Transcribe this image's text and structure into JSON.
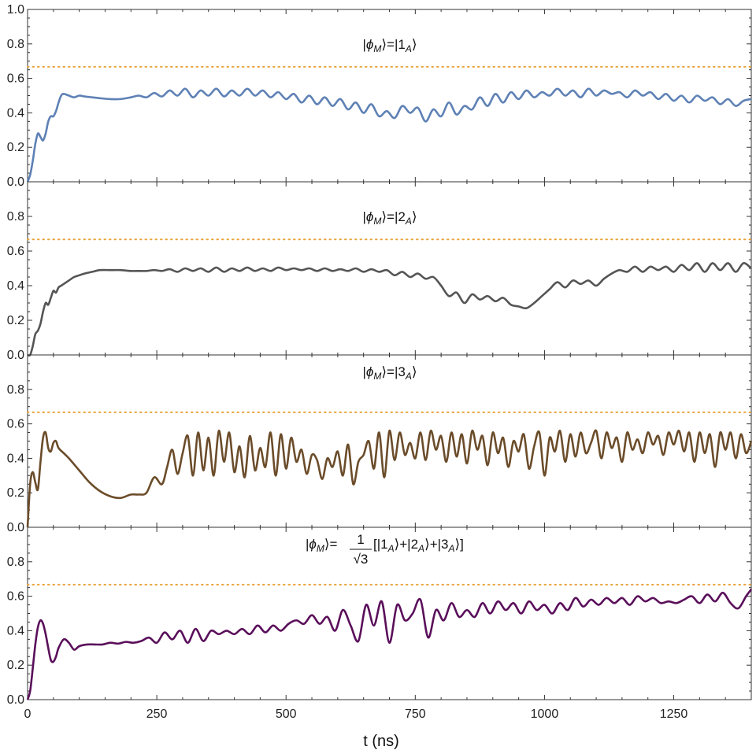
{
  "chart_data": [
    {
      "type": "line",
      "annotation": {
        "prefix": "|",
        "symbol": "ϕ",
        "symbol_sub": "M",
        "mid": "⟩=|1",
        "ket_sub": "A",
        "suffix": "⟩"
      },
      "ylim": [
        0,
        1
      ],
      "yticks": [
        "0.0",
        "0.2",
        "0.4",
        "0.6",
        "0.8",
        "1.0"
      ],
      "reference_line": {
        "y": 0.667,
        "style": "dotted",
        "color": "#E8A33B"
      },
      "series": [
        {
          "color": "#5E81B5",
          "x": [
            0,
            5,
            10,
            15,
            20,
            25,
            30,
            35,
            40,
            45,
            50,
            55,
            60,
            65,
            70,
            80,
            90,
            100,
            110,
            125,
            140,
            160,
            180,
            200,
            215,
            230,
            245,
            260,
            275,
            290,
            305,
            320,
            335,
            350,
            365,
            380,
            395,
            410,
            425,
            440,
            455,
            470,
            485,
            500,
            515,
            530,
            545,
            560,
            575,
            590,
            605,
            620,
            635,
            650,
            665,
            680,
            695,
            710,
            725,
            740,
            755,
            770,
            785,
            800,
            815,
            830,
            845,
            860,
            875,
            890,
            905,
            920,
            935,
            950,
            965,
            980,
            995,
            1010,
            1025,
            1040,
            1055,
            1070,
            1085,
            1100,
            1115,
            1130,
            1145,
            1160,
            1175,
            1190,
            1205,
            1220,
            1235,
            1250,
            1265,
            1280,
            1295,
            1310,
            1325,
            1340,
            1355,
            1370,
            1385,
            1400
          ],
          "y": [
            0.0,
            0.04,
            0.12,
            0.22,
            0.28,
            0.26,
            0.24,
            0.28,
            0.35,
            0.38,
            0.38,
            0.41,
            0.46,
            0.5,
            0.51,
            0.5,
            0.49,
            0.5,
            0.495,
            0.49,
            0.485,
            0.48,
            0.48,
            0.49,
            0.5,
            0.49,
            0.515,
            0.495,
            0.53,
            0.5,
            0.54,
            0.49,
            0.53,
            0.5,
            0.54,
            0.495,
            0.53,
            0.5,
            0.54,
            0.5,
            0.53,
            0.49,
            0.52,
            0.48,
            0.51,
            0.46,
            0.5,
            0.45,
            0.49,
            0.44,
            0.48,
            0.42,
            0.46,
            0.4,
            0.45,
            0.38,
            0.41,
            0.37,
            0.44,
            0.4,
            0.43,
            0.35,
            0.42,
            0.38,
            0.46,
            0.39,
            0.44,
            0.42,
            0.49,
            0.44,
            0.51,
            0.46,
            0.52,
            0.48,
            0.53,
            0.49,
            0.52,
            0.5,
            0.54,
            0.5,
            0.53,
            0.49,
            0.54,
            0.5,
            0.53,
            0.51,
            0.52,
            0.49,
            0.53,
            0.5,
            0.52,
            0.48,
            0.51,
            0.47,
            0.5,
            0.46,
            0.5,
            0.47,
            0.49,
            0.45,
            0.48,
            0.44,
            0.47,
            0.48
          ]
        }
      ]
    },
    {
      "type": "line",
      "annotation": {
        "prefix": "|",
        "symbol": "ϕ",
        "symbol_sub": "M",
        "mid": "⟩=|2",
        "ket_sub": "A",
        "suffix": "⟩"
      },
      "ylim": [
        0,
        1
      ],
      "yticks": [
        "0.0",
        "0.2",
        "0.4",
        "0.6",
        "0.8"
      ],
      "reference_line": {
        "y": 0.667,
        "style": "dotted",
        "color": "#E8A33B"
      },
      "series": [
        {
          "color": "#555555",
          "x": [
            0,
            5,
            10,
            15,
            20,
            25,
            30,
            35,
            40,
            45,
            50,
            55,
            60,
            65,
            70,
            80,
            90,
            100,
            110,
            125,
            140,
            160,
            180,
            200,
            215,
            230,
            245,
            260,
            275,
            290,
            305,
            320,
            335,
            350,
            365,
            380,
            395,
            410,
            425,
            440,
            455,
            470,
            485,
            500,
            515,
            530,
            545,
            560,
            575,
            590,
            605,
            620,
            635,
            650,
            665,
            680,
            695,
            710,
            725,
            740,
            755,
            770,
            785,
            800,
            815,
            830,
            845,
            860,
            875,
            890,
            905,
            920,
            935,
            950,
            965,
            980,
            995,
            1010,
            1025,
            1040,
            1055,
            1070,
            1085,
            1100,
            1115,
            1130,
            1145,
            1160,
            1175,
            1190,
            1205,
            1220,
            1235,
            1250,
            1265,
            1280,
            1295,
            1310,
            1325,
            1340,
            1355,
            1370,
            1385,
            1400
          ],
          "y": [
            0.0,
            0.0,
            0.05,
            0.12,
            0.14,
            0.18,
            0.25,
            0.3,
            0.29,
            0.33,
            0.37,
            0.36,
            0.39,
            0.4,
            0.41,
            0.43,
            0.45,
            0.46,
            0.47,
            0.48,
            0.49,
            0.49,
            0.49,
            0.485,
            0.485,
            0.485,
            0.49,
            0.485,
            0.495,
            0.48,
            0.5,
            0.485,
            0.5,
            0.48,
            0.505,
            0.48,
            0.5,
            0.485,
            0.505,
            0.485,
            0.5,
            0.485,
            0.505,
            0.49,
            0.5,
            0.49,
            0.5,
            0.485,
            0.5,
            0.485,
            0.495,
            0.485,
            0.5,
            0.48,
            0.495,
            0.48,
            0.49,
            0.46,
            0.48,
            0.45,
            0.47,
            0.44,
            0.45,
            0.4,
            0.34,
            0.36,
            0.3,
            0.35,
            0.32,
            0.34,
            0.31,
            0.33,
            0.29,
            0.28,
            0.27,
            0.3,
            0.34,
            0.38,
            0.42,
            0.39,
            0.43,
            0.41,
            0.43,
            0.4,
            0.44,
            0.47,
            0.49,
            0.48,
            0.51,
            0.48,
            0.51,
            0.49,
            0.51,
            0.48,
            0.52,
            0.49,
            0.53,
            0.48,
            0.53,
            0.49,
            0.53,
            0.48,
            0.53,
            0.5
          ]
        }
      ]
    },
    {
      "type": "line",
      "annotation": {
        "prefix": "|",
        "symbol": "ϕ",
        "symbol_sub": "M",
        "mid": "⟩=|3",
        "ket_sub": "A",
        "suffix": "⟩"
      },
      "ylim": [
        0,
        1
      ],
      "yticks": [
        "0.0",
        "0.2",
        "0.4",
        "0.6",
        "0.8"
      ],
      "reference_line": {
        "y": 0.667,
        "style": "dotted",
        "color": "#E8A33B"
      },
      "series": [
        {
          "color": "#6B4C2A",
          "x": [
            0,
            5,
            10,
            15,
            20,
            25,
            30,
            35,
            40,
            45,
            50,
            55,
            60,
            70,
            80,
            100,
            120,
            140,
            160,
            180,
            200,
            215,
            230,
            245,
            260,
            270,
            280,
            290,
            300,
            310,
            320,
            330,
            340,
            350,
            360,
            370,
            380,
            390,
            400,
            410,
            420,
            430,
            440,
            450,
            460,
            470,
            480,
            490,
            500,
            510,
            520,
            530,
            540,
            550,
            560,
            570,
            580,
            590,
            600,
            610,
            620,
            630,
            640,
            650,
            660,
            670,
            680,
            690,
            700,
            710,
            720,
            730,
            740,
            750,
            760,
            770,
            780,
            790,
            800,
            810,
            820,
            830,
            840,
            850,
            860,
            870,
            880,
            890,
            900,
            910,
            920,
            930,
            940,
            950,
            960,
            970,
            980,
            990,
            1000,
            1010,
            1020,
            1030,
            1040,
            1050,
            1060,
            1070,
            1080,
            1090,
            1100,
            1110,
            1120,
            1130,
            1140,
            1150,
            1160,
            1170,
            1180,
            1190,
            1200,
            1210,
            1220,
            1230,
            1240,
            1250,
            1260,
            1270,
            1280,
            1290,
            1300,
            1310,
            1320,
            1330,
            1340,
            1350,
            1360,
            1370,
            1380,
            1390,
            1400
          ],
          "y": [
            0.0,
            0.25,
            0.32,
            0.26,
            0.22,
            0.38,
            0.52,
            0.55,
            0.46,
            0.44,
            0.49,
            0.5,
            0.46,
            0.43,
            0.4,
            0.33,
            0.26,
            0.21,
            0.18,
            0.17,
            0.19,
            0.19,
            0.2,
            0.29,
            0.25,
            0.35,
            0.45,
            0.31,
            0.43,
            0.53,
            0.3,
            0.55,
            0.33,
            0.52,
            0.3,
            0.56,
            0.38,
            0.55,
            0.32,
            0.47,
            0.29,
            0.53,
            0.33,
            0.46,
            0.35,
            0.55,
            0.3,
            0.54,
            0.34,
            0.52,
            0.38,
            0.45,
            0.31,
            0.42,
            0.39,
            0.28,
            0.4,
            0.35,
            0.44,
            0.3,
            0.48,
            0.25,
            0.38,
            0.42,
            0.5,
            0.34,
            0.55,
            0.29,
            0.56,
            0.39,
            0.55,
            0.42,
            0.49,
            0.4,
            0.55,
            0.39,
            0.56,
            0.45,
            0.53,
            0.38,
            0.55,
            0.41,
            0.54,
            0.37,
            0.56,
            0.45,
            0.53,
            0.36,
            0.55,
            0.43,
            0.52,
            0.35,
            0.5,
            0.44,
            0.54,
            0.34,
            0.47,
            0.55,
            0.3,
            0.52,
            0.44,
            0.56,
            0.38,
            0.54,
            0.41,
            0.55,
            0.43,
            0.49,
            0.56,
            0.4,
            0.55,
            0.46,
            0.52,
            0.38,
            0.55,
            0.45,
            0.51,
            0.43,
            0.55,
            0.48,
            0.53,
            0.42,
            0.55,
            0.48,
            0.56,
            0.44,
            0.55,
            0.38,
            0.55,
            0.43,
            0.54,
            0.35,
            0.55,
            0.45,
            0.55,
            0.4,
            0.54,
            0.43,
            0.5
          ]
        }
      ]
    },
    {
      "type": "line",
      "annotation": {
        "prefix": "|",
        "symbol": "ϕ",
        "symbol_sub": "M",
        "mid": "⟩=",
        "fraction": "1/√3",
        "expr_open": "[|1",
        "expr_sub1": "A",
        "expr_mid1": "⟩+|2",
        "expr_sub2": "A",
        "expr_mid2": "⟩+|3",
        "expr_sub3": "A",
        "expr_close": "⟩]"
      },
      "ylim": [
        0,
        1
      ],
      "yticks": [
        "0.0",
        "0.2",
        "0.4",
        "0.6",
        "0.8"
      ],
      "reference_line": {
        "y": 0.667,
        "style": "dotted",
        "color": "#E8A33B"
      },
      "series": [
        {
          "color": "#5A0F5A",
          "x": [
            0,
            5,
            10,
            15,
            20,
            25,
            30,
            35,
            40,
            45,
            50,
            55,
            60,
            70,
            80,
            90,
            100,
            115,
            130,
            145,
            160,
            175,
            190,
            205,
            220,
            235,
            250,
            265,
            280,
            295,
            310,
            325,
            340,
            355,
            370,
            385,
            400,
            415,
            430,
            445,
            460,
            475,
            490,
            505,
            520,
            535,
            550,
            565,
            580,
            595,
            610,
            625,
            640,
            655,
            670,
            685,
            700,
            715,
            730,
            745,
            760,
            775,
            790,
            805,
            820,
            835,
            850,
            865,
            880,
            895,
            910,
            925,
            940,
            955,
            970,
            985,
            1000,
            1015,
            1030,
            1045,
            1060,
            1075,
            1090,
            1105,
            1120,
            1135,
            1150,
            1165,
            1180,
            1195,
            1210,
            1225,
            1240,
            1255,
            1270,
            1285,
            1300,
            1315,
            1330,
            1345,
            1360,
            1375,
            1390,
            1400
          ],
          "y": [
            0.0,
            0.05,
            0.18,
            0.32,
            0.42,
            0.46,
            0.44,
            0.38,
            0.3,
            0.23,
            0.22,
            0.25,
            0.3,
            0.35,
            0.33,
            0.29,
            0.31,
            0.32,
            0.32,
            0.32,
            0.33,
            0.325,
            0.335,
            0.33,
            0.34,
            0.36,
            0.33,
            0.39,
            0.35,
            0.4,
            0.33,
            0.41,
            0.34,
            0.4,
            0.38,
            0.4,
            0.38,
            0.41,
            0.38,
            0.43,
            0.39,
            0.43,
            0.4,
            0.44,
            0.46,
            0.44,
            0.49,
            0.44,
            0.48,
            0.4,
            0.52,
            0.43,
            0.34,
            0.55,
            0.43,
            0.57,
            0.33,
            0.55,
            0.46,
            0.5,
            0.58,
            0.36,
            0.52,
            0.46,
            0.56,
            0.48,
            0.52,
            0.48,
            0.56,
            0.5,
            0.57,
            0.52,
            0.56,
            0.5,
            0.57,
            0.52,
            0.55,
            0.5,
            0.56,
            0.52,
            0.59,
            0.54,
            0.58,
            0.55,
            0.59,
            0.56,
            0.59,
            0.55,
            0.6,
            0.57,
            0.59,
            0.56,
            0.57,
            0.56,
            0.58,
            0.6,
            0.56,
            0.61,
            0.57,
            0.62,
            0.56,
            0.53,
            0.6,
            0.64
          ]
        }
      ]
    }
  ],
  "shared_x": {
    "xlim": [
      0,
      1400
    ],
    "xticks": [
      0,
      250,
      500,
      750,
      1000,
      1250
    ],
    "xtick_labels": [
      "0",
      "250",
      "500",
      "750",
      "1000",
      "1250"
    ],
    "xlabel": "t (ns)"
  }
}
